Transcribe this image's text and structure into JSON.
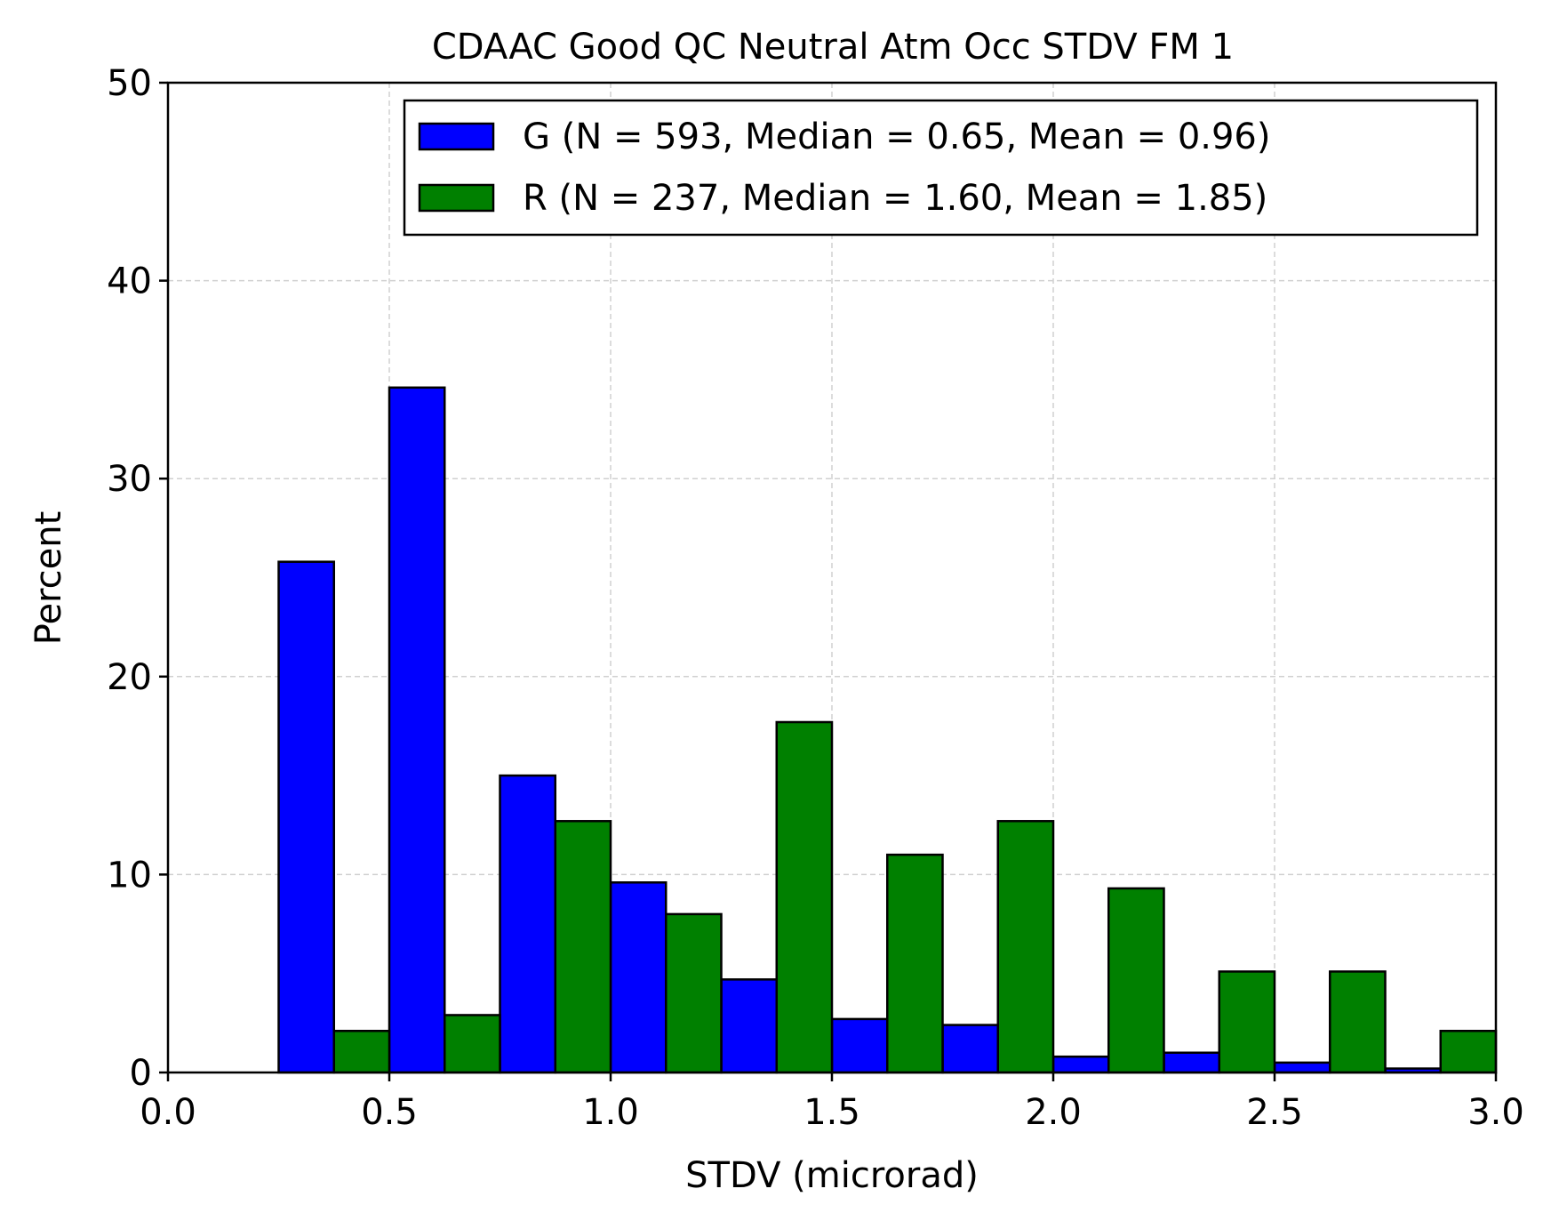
{
  "chart_data": {
    "type": "bar",
    "title": "CDAAC Good QC Neutral Atm Occ STDV FM 1",
    "xlabel": "STDV (microrad)",
    "ylabel": "Percent",
    "xlim": [
      0.0,
      3.0
    ],
    "ylim": [
      0,
      50
    ],
    "xticks": [
      "0.0",
      "0.5",
      "1.0",
      "1.5",
      "2.0",
      "2.5",
      "3.0"
    ],
    "yticks": [
      "0",
      "10",
      "20",
      "30",
      "40",
      "50"
    ],
    "grid": true,
    "legend_position": "top-right",
    "bin_edges": [
      0.25,
      0.5,
      0.75,
      1.0,
      1.25,
      1.5,
      1.75,
      2.0,
      2.25,
      2.5,
      2.75,
      3.0
    ],
    "series": [
      {
        "name": "G (N = 593, Median = 0.65, Mean = 0.96)",
        "color": "#0000ff",
        "offset": "left",
        "values": [
          25.8,
          34.6,
          15.0,
          9.6,
          4.7,
          2.7,
          2.4,
          0.8,
          1.0,
          0.5,
          0.2
        ]
      },
      {
        "name": "R (N = 237, Median = 1.60, Mean = 1.85)",
        "color": "#008000",
        "offset": "right",
        "values": [
          2.1,
          2.9,
          12.7,
          8.0,
          17.7,
          11.0,
          12.7,
          9.3,
          5.1,
          5.1,
          2.1
        ]
      }
    ]
  }
}
